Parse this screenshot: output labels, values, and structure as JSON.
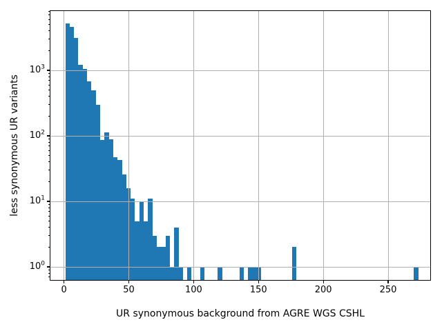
{
  "chart_data": {
    "type": "bar",
    "subtype": "histogram",
    "title": "",
    "xlabel": "UR synonymous background from AGRE WGS CSHL",
    "ylabel": "less synonymous UR variants",
    "yscale": "log",
    "grid": true,
    "legend": null,
    "bar_color": "#1f77b4",
    "grid_color": "#b0b0b0",
    "spine_color": "#000000",
    "bin_start": 1.0,
    "bin_width": 3.36,
    "values": [
      5200,
      4600,
      3100,
      1200,
      1050,
      680,
      500,
      300,
      87,
      113,
      89,
      47,
      43,
      26,
      16,
      11,
      5,
      10,
      5,
      11,
      3,
      2,
      2,
      3,
      1,
      4,
      1,
      0,
      1,
      0,
      0,
      1,
      0,
      0,
      0,
      1,
      0,
      0,
      0,
      0,
      1,
      0,
      1,
      1,
      1,
      0,
      0,
      0,
      0,
      0,
      0,
      0,
      2,
      0,
      0,
      0,
      0,
      0,
      0,
      0,
      0,
      0,
      0,
      0,
      0,
      0,
      0,
      0,
      0,
      0,
      0,
      0,
      0,
      0,
      0,
      0,
      0,
      0,
      0,
      0,
      1
    ],
    "x_ticks": [
      0,
      50,
      100,
      150,
      200,
      250
    ],
    "y_tick_exponents": [
      0,
      1,
      2,
      3
    ],
    "xlim": [
      -11,
      283
    ],
    "ylim": [
      0.616,
      8240
    ]
  }
}
